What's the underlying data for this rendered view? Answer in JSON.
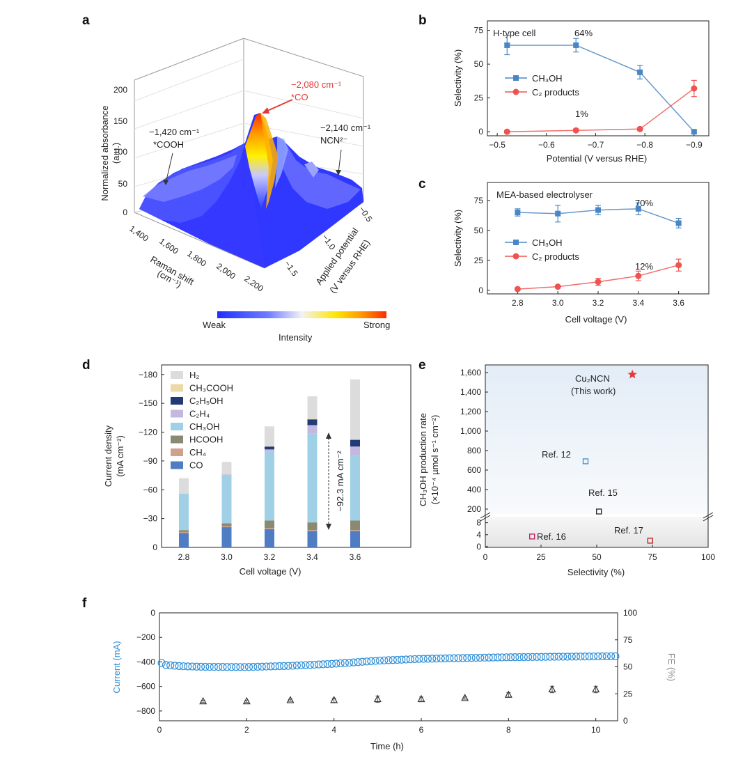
{
  "panel_labels": {
    "a": "a",
    "b": "b",
    "c": "c",
    "d": "d",
    "e": "e",
    "f": "f"
  },
  "colors": {
    "ch3oh": "#4a86c5",
    "c2": "#ef5350",
    "c2_marker": "#e53935",
    "current": "#2f8fd6",
    "fe": "#555555",
    "surface_low": "#1f2dff",
    "surface_high": "#ff2a00",
    "e_background": "#e6eef6"
  },
  "chart_data": [
    {
      "id": "a",
      "type": "surface3d",
      "zlabel": "Normalized absorbance",
      "zunit": "(a.u.)",
      "zticks": [
        "0",
        "50",
        "100",
        "150",
        "200"
      ],
      "xlabel": "Raman shift",
      "xunit": "(cm⁻¹)",
      "xticks": [
        "1,400",
        "1,600",
        "1,800",
        "2,000",
        "2,200"
      ],
      "ylabel": "Applied potential",
      "yunit": "(V versus RHE)",
      "yticks": [
        "−0.5",
        "−1.0",
        "−1.5"
      ],
      "peaks": [
        {
          "wavenumber_line": "−1,420 cm⁻¹",
          "species": "*COOH",
          "height": 40
        },
        {
          "wavenumber_line": "−2,080 cm⁻¹",
          "species": "*CO",
          "height": 150
        },
        {
          "wavenumber_line": "−2,140 cm⁻¹",
          "species": "NCN²⁻",
          "height": 45
        }
      ],
      "colorbar": {
        "weak": "Weak",
        "strong": "Strong",
        "label": "Intensity"
      }
    },
    {
      "id": "b",
      "type": "line",
      "title": "H-type cell",
      "xlabel": "Potential (V versus RHE)",
      "ylabel": "Selectivity (%)",
      "xlim": [
        -0.48,
        -0.93
      ],
      "ylim": [
        -3,
        82
      ],
      "xticks": [
        "−0.5",
        "−0.6",
        "−0.7",
        "−0.8",
        "−0.9"
      ],
      "yticks": [
        "0",
        "25",
        "50",
        "75"
      ],
      "x": [
        -0.52,
        -0.66,
        -0.79,
        -0.9
      ],
      "series": [
        {
          "name": "CH₃OH",
          "values": [
            64,
            64,
            44,
            0
          ],
          "errors": [
            7,
            5,
            5,
            1
          ]
        },
        {
          "name": "C₂ products",
          "values": [
            0,
            1,
            2,
            32
          ],
          "errors": [
            1,
            1,
            1,
            6
          ]
        }
      ],
      "annotations": [
        "64%",
        "1%"
      ]
    },
    {
      "id": "c",
      "type": "line",
      "title": "MEA-based electrolyser",
      "xlabel": "Cell voltage (V)",
      "ylabel": "Selectivity (%)",
      "xlim": [
        2.65,
        3.75
      ],
      "ylim": [
        -3,
        90
      ],
      "xticks": [
        "2.8",
        "3.0",
        "3.2",
        "3.4",
        "3.6"
      ],
      "yticks": [
        "0",
        "25",
        "50",
        "75"
      ],
      "x": [
        2.8,
        3.0,
        3.2,
        3.4,
        3.6
      ],
      "series": [
        {
          "name": "CH₃OH",
          "values": [
            65,
            64,
            67,
            68,
            56
          ],
          "errors": [
            3,
            7,
            4,
            5,
            4
          ]
        },
        {
          "name": "C₂ products",
          "values": [
            1,
            3,
            7,
            12,
            21
          ],
          "errors": [
            1,
            1,
            3,
            4,
            5
          ]
        }
      ],
      "annotations": [
        "70%",
        "12%"
      ]
    },
    {
      "id": "d",
      "type": "bar",
      "xlabel": "Cell voltage (V)",
      "ylabel": "Current density",
      "yunit": "(mA cm⁻²)",
      "ylim": [
        0,
        -190
      ],
      "yticks": [
        "0",
        "−30",
        "−60",
        "−90",
        "−120",
        "−150",
        "−180"
      ],
      "categories": [
        "2.8",
        "3.0",
        "3.2",
        "3.4",
        "3.6"
      ],
      "series": [
        {
          "name": "CO",
          "color": "#4f7cc2",
          "values": [
            -15,
            -21,
            -19,
            -17,
            -17
          ]
        },
        {
          "name": "CH₄",
          "color": "#d0a08c",
          "values": [
            -1,
            -1,
            -1,
            -1,
            -1
          ]
        },
        {
          "name": "HCOOH",
          "color": "#8a8a72",
          "values": [
            -2,
            -3,
            -8,
            -8,
            -10
          ]
        },
        {
          "name": "CH₃OH",
          "color": "#9fd0e6",
          "values": [
            -38,
            -50,
            -72,
            -92.3,
            -68
          ]
        },
        {
          "name": "C₂H₄",
          "color": "#c5b8e0",
          "values": [
            0,
            -1,
            -2,
            -9,
            -9
          ]
        },
        {
          "name": "C₂H₅OH",
          "color": "#233a78",
          "values": [
            0,
            0,
            -3,
            -6,
            -7
          ]
        },
        {
          "name": "CH₃COOH",
          "color": "#ecd9a8",
          "values": [
            0,
            0,
            0,
            -1,
            -1
          ]
        },
        {
          "name": "H₂",
          "color": "#dcdcdc",
          "values": [
            -16,
            -13,
            -21,
            -23,
            -62
          ]
        }
      ],
      "annotation": "−92.3 mA cm⁻²"
    },
    {
      "id": "e",
      "type": "scatter",
      "xlabel": "Selectivity (%)",
      "ylabel": "CH₃OH production rate",
      "yunit": "(×10⁻⁴ µmol s⁻¹ cm⁻²)",
      "xlim": [
        0,
        100
      ],
      "xticks": [
        "0",
        "25",
        "50",
        "75",
        "100"
      ],
      "yticks_upper": [
        "200",
        "400",
        "600",
        "800",
        "1,000",
        "1,200",
        "1,400",
        "1,600"
      ],
      "yticks_lower": [
        "0",
        "4",
        "8"
      ],
      "points": [
        {
          "label": "Cu₂NCN",
          "sublabel": "(This work)",
          "x": 66,
          "y": 1580,
          "marker": "star",
          "color": "#e53935"
        },
        {
          "label": "Ref. 12",
          "x": 45,
          "y": 690,
          "marker": "square",
          "color": "#3b8fd0"
        },
        {
          "label": "Ref. 15",
          "x": 51,
          "y": 175,
          "marker": "square",
          "color": "#222222"
        },
        {
          "label": "Ref. 16",
          "x": 21,
          "y": 3.4,
          "marker": "square",
          "color": "#c2185b"
        },
        {
          "label": "Ref. 17",
          "x": 74,
          "y": 2,
          "marker": "square",
          "color": "#b71c1c"
        }
      ]
    },
    {
      "id": "f",
      "type": "scatter",
      "xlabel": "Time (h)",
      "ylabel": "Current (mA)",
      "y2label": "FE (%)",
      "xlim": [
        0,
        10.5
      ],
      "ylim": [
        -880,
        0
      ],
      "y2lim": [
        0,
        100
      ],
      "xticks": [
        "0",
        "2",
        "4",
        "6",
        "8",
        "10"
      ],
      "yticks": [
        "0",
        "−200",
        "−400",
        "−600",
        "−800"
      ],
      "y2ticks": [
        "0",
        "25",
        "50",
        "75",
        "100"
      ],
      "current_key": {
        "t": [
          0,
          0.15,
          0.5,
          1,
          2,
          3,
          4,
          5,
          6,
          7,
          8,
          9,
          10,
          10.5
        ],
        "i": [
          -400,
          -425,
          -435,
          -440,
          -442,
          -432,
          -415,
          -390,
          -375,
          -368,
          -362,
          -358,
          -355,
          -354
        ]
      },
      "fe": {
        "t": [
          1,
          2,
          3,
          4,
          5,
          6,
          7,
          8,
          9,
          10
        ],
        "values": [
          18,
          18,
          19,
          19,
          20,
          20,
          21,
          24,
          29,
          29
        ],
        "errors": [
          1,
          1,
          1,
          2,
          3,
          2,
          1,
          2,
          3,
          3
        ]
      }
    }
  ]
}
